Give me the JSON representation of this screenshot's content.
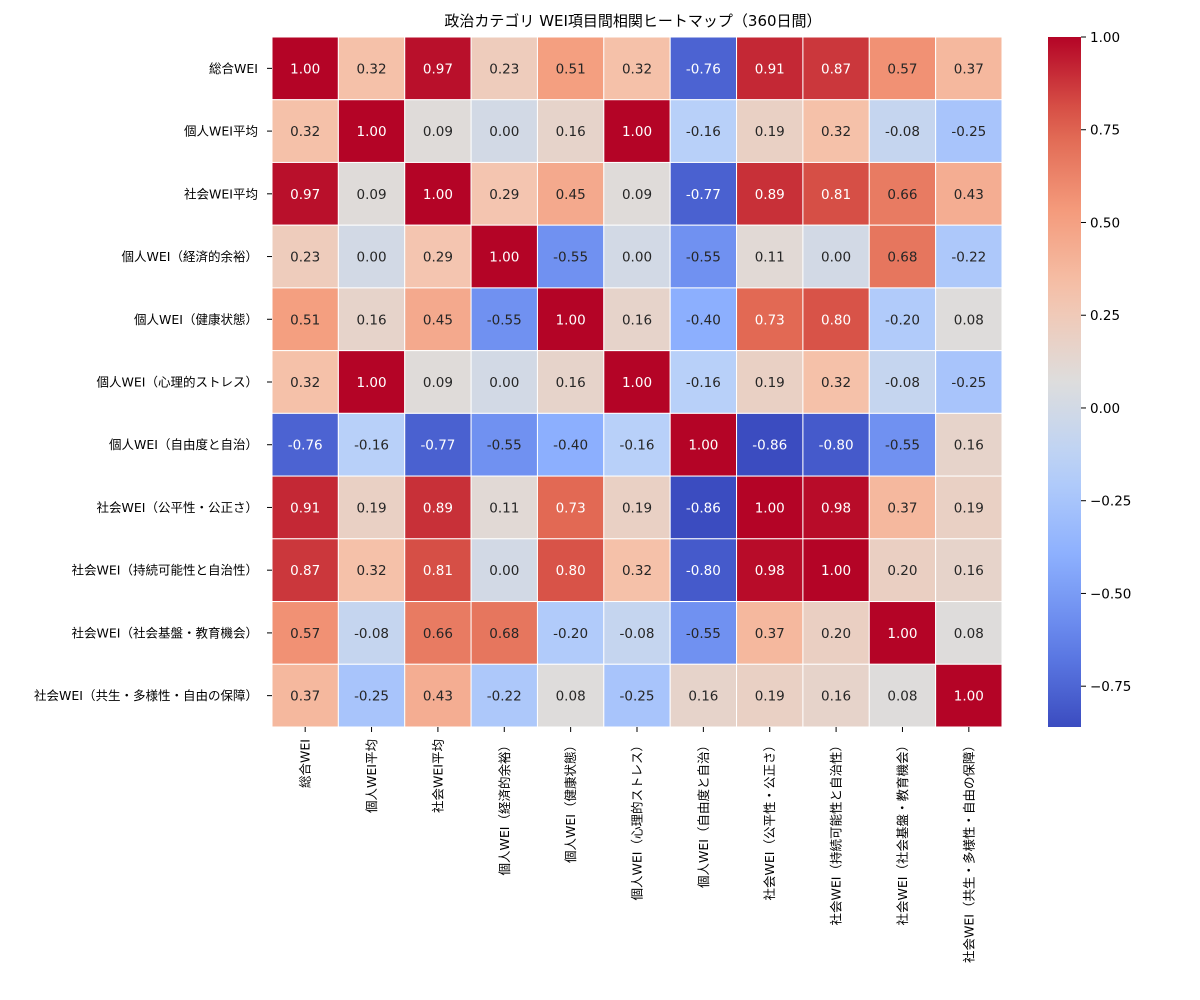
{
  "chart_data": {
    "type": "heatmap",
    "title": "政治カテゴリ WEI項目間相関ヒートマップ（360日間）",
    "labels": [
      "総合WEI",
      "個人WEI平均",
      "社会WEI平均",
      "個人WEI（経済的余裕）",
      "個人WEI（健康状態）",
      "個人WEI（心理的ストレス）",
      "個人WEI（自由度と自治）",
      "社会WEI（公平性・公正さ）",
      "社会WEI（持続可能性と自治性）",
      "社会WEI（社会基盤・教育機会）",
      "社会WEI（共生・多様性・自由の保障）"
    ],
    "matrix": [
      [
        1.0,
        0.32,
        0.97,
        0.23,
        0.51,
        0.32,
        -0.76,
        0.91,
        0.87,
        0.57,
        0.37
      ],
      [
        0.32,
        1.0,
        0.09,
        -0.0,
        0.16,
        1.0,
        -0.16,
        0.19,
        0.32,
        -0.08,
        -0.25
      ],
      [
        0.97,
        0.09,
        1.0,
        0.29,
        0.45,
        0.09,
        -0.77,
        0.89,
        0.81,
        0.66,
        0.43
      ],
      [
        0.23,
        -0.0,
        0.29,
        1.0,
        -0.55,
        -0.0,
        -0.55,
        0.11,
        -0.0,
        0.68,
        -0.22
      ],
      [
        0.51,
        0.16,
        0.45,
        -0.55,
        1.0,
        0.16,
        -0.4,
        0.73,
        0.8,
        -0.2,
        0.08
      ],
      [
        0.32,
        1.0,
        0.09,
        -0.0,
        0.16,
        1.0,
        -0.16,
        0.19,
        0.32,
        -0.08,
        -0.25
      ],
      [
        -0.76,
        -0.16,
        -0.77,
        -0.55,
        -0.4,
        -0.16,
        1.0,
        -0.86,
        -0.8,
        -0.55,
        0.16
      ],
      [
        0.91,
        0.19,
        0.89,
        0.11,
        0.73,
        0.19,
        -0.86,
        1.0,
        0.98,
        0.37,
        0.19
      ],
      [
        0.87,
        0.32,
        0.81,
        -0.0,
        0.8,
        0.32,
        -0.8,
        0.98,
        1.0,
        0.2,
        0.16
      ],
      [
        0.57,
        -0.08,
        0.66,
        0.68,
        -0.2,
        -0.08,
        -0.55,
        0.37,
        0.2,
        1.0,
        0.08
      ],
      [
        0.37,
        -0.25,
        0.43,
        -0.22,
        0.08,
        -0.25,
        0.16,
        0.19,
        0.16,
        0.08,
        1.0
      ]
    ],
    "value_format": "2 decimals",
    "colormap": "coolwarm",
    "vmin": -0.86,
    "vmax": 1.0,
    "colorbar": {
      "ticks": [
        1.0,
        0.75,
        0.5,
        0.25,
        0.0,
        -0.25,
        -0.5,
        -0.75
      ],
      "tick_labels": [
        "1.00",
        "0.75",
        "0.50",
        "0.25",
        "0.00",
        "−0.25",
        "−0.50",
        "−0.75"
      ]
    },
    "xlabel": "",
    "ylabel": ""
  }
}
